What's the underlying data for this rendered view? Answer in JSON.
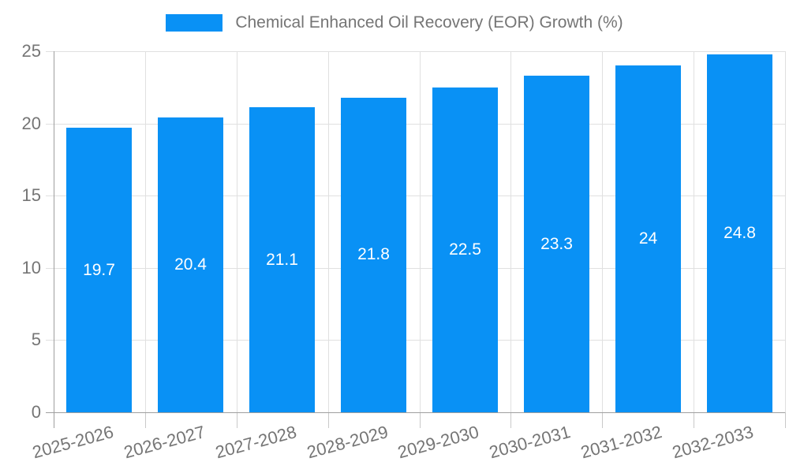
{
  "chart_data": {
    "type": "bar",
    "title": "Chemical Enhanced Oil Recovery (EOR) Growth (%)",
    "categories": [
      "2025-2026",
      "2026-2027",
      "2027-2028",
      "2028-2029",
      "2029-2030",
      "2030-2031",
      "2031-2032",
      "2032-2033"
    ],
    "values": [
      19.7,
      20.4,
      21.1,
      21.8,
      22.5,
      23.3,
      24,
      24.8
    ],
    "xlabel": "",
    "ylabel": "",
    "ylim": [
      0,
      25
    ],
    "yticks": [
      0,
      5,
      10,
      15,
      20,
      25
    ],
    "grid": true,
    "legend_position": "top-center",
    "bar_label_position": "inside-middle",
    "colors": {
      "bar": "#0991f5",
      "grid": "#e0e0e0",
      "axis": "#9e9e9e",
      "minor_tick": "#c9c9c9",
      "tick_text": "#757575",
      "bar_label": "#ffffff",
      "background": "#ffffff"
    }
  }
}
